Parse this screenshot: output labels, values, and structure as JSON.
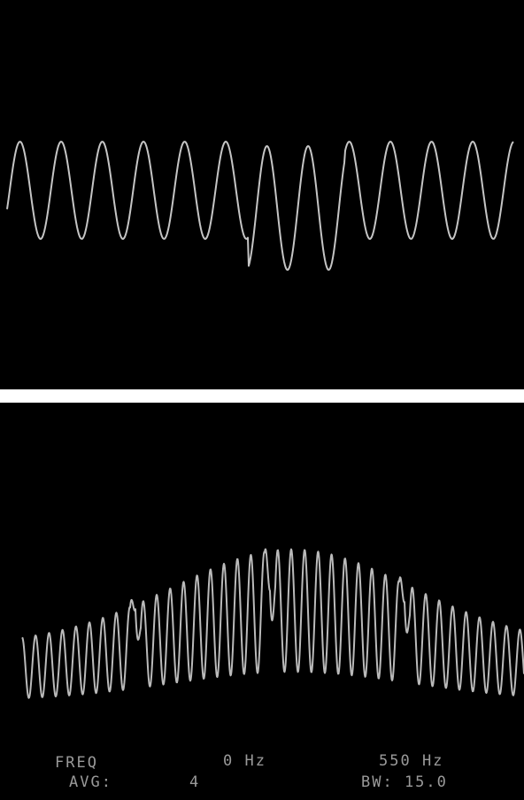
{
  "readout": {
    "row1": [
      "FREQ",
      "0 Hz",
      "550 Hz"
    ],
    "row2": [
      "AVG:",
      "4",
      "BW: 15.0"
    ]
  }
}
